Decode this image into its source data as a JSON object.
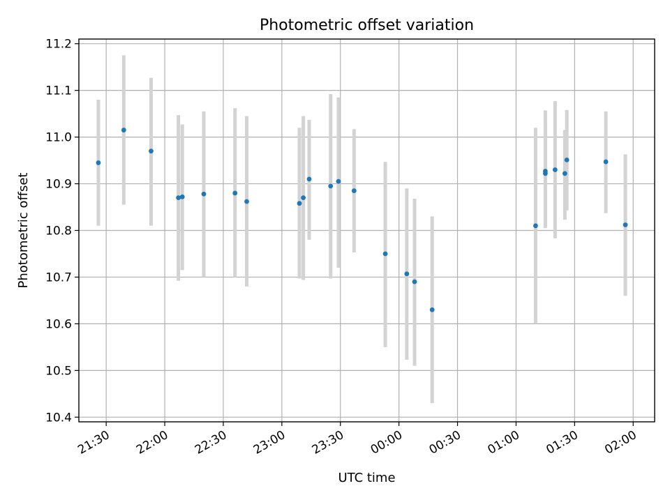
{
  "chart_data": {
    "type": "scatter",
    "title": "Photometric offset variation",
    "xlabel": "UTC time",
    "ylabel": "Photometric offset",
    "xlim": [
      "21:16",
      "02:11"
    ],
    "ylim": [
      10.39,
      11.21
    ],
    "x_tick_labels": [
      "21:30",
      "22:00",
      "22:30",
      "23:00",
      "23:30",
      "00:00",
      "00:30",
      "01:00",
      "01:30",
      "02:00"
    ],
    "x_tick_values": [
      "21:30",
      "22:00",
      "22:30",
      "23:00",
      "23:30",
      "00:00",
      "00:30",
      "01:00",
      "01:30",
      "02:00"
    ],
    "y_ticks": [
      10.4,
      10.5,
      10.6,
      10.7,
      10.8,
      10.9,
      11.0,
      11.1,
      11.2
    ],
    "grid": true,
    "point_color": "#1f77b4",
    "errorbar_color": "#d3d3d3",
    "points": [
      {
        "t": "21:26",
        "y": 10.945,
        "lo": 10.81,
        "hi": 11.08
      },
      {
        "t": "21:39",
        "y": 11.015,
        "lo": 10.855,
        "hi": 11.175
      },
      {
        "t": "21:53",
        "y": 10.97,
        "lo": 10.81,
        "hi": 11.127
      },
      {
        "t": "22:07",
        "y": 10.87,
        "lo": 10.692,
        "hi": 11.047
      },
      {
        "t": "22:09",
        "y": 10.872,
        "lo": 10.715,
        "hi": 11.027
      },
      {
        "t": "22:20",
        "y": 10.878,
        "lo": 10.7,
        "hi": 11.055
      },
      {
        "t": "22:36",
        "y": 10.88,
        "lo": 10.7,
        "hi": 11.062
      },
      {
        "t": "22:42",
        "y": 10.862,
        "lo": 10.68,
        "hi": 11.045
      },
      {
        "t": "23:09",
        "y": 10.858,
        "lo": 10.697,
        "hi": 11.02
      },
      {
        "t": "23:11",
        "y": 10.87,
        "lo": 10.694,
        "hi": 11.045
      },
      {
        "t": "23:14",
        "y": 10.91,
        "lo": 10.78,
        "hi": 11.037
      },
      {
        "t": "23:25",
        "y": 10.895,
        "lo": 10.697,
        "hi": 11.092
      },
      {
        "t": "23:29",
        "y": 10.905,
        "lo": 10.72,
        "hi": 11.085
      },
      {
        "t": "23:37",
        "y": 10.885,
        "lo": 10.753,
        "hi": 11.017
      },
      {
        "t": "23:53",
        "y": 10.75,
        "lo": 10.55,
        "hi": 10.947
      },
      {
        "t": "00:04",
        "y": 10.707,
        "lo": 10.523,
        "hi": 10.89
      },
      {
        "t": "00:08",
        "y": 10.69,
        "lo": 10.51,
        "hi": 10.868
      },
      {
        "t": "00:17",
        "y": 10.63,
        "lo": 10.43,
        "hi": 10.83
      },
      {
        "t": "01:10",
        "y": 10.81,
        "lo": 10.6,
        "hi": 11.02
      },
      {
        "t": "01:15",
        "y": 10.927,
        "lo": 10.81,
        "hi": 11.057
      },
      {
        "t": "01:15",
        "y": 10.922,
        "lo": 10.805,
        "hi": 11.032
      },
      {
        "t": "01:20",
        "y": 10.93,
        "lo": 10.783,
        "hi": 11.077
      },
      {
        "t": "01:25",
        "y": 10.922,
        "lo": 10.823,
        "hi": 11.015
      },
      {
        "t": "01:26",
        "y": 10.951,
        "lo": 10.843,
        "hi": 11.058
      },
      {
        "t": "01:46",
        "y": 10.947,
        "lo": 10.837,
        "hi": 11.055
      },
      {
        "t": "01:56",
        "y": 10.812,
        "lo": 10.66,
        "hi": 10.963
      }
    ]
  }
}
